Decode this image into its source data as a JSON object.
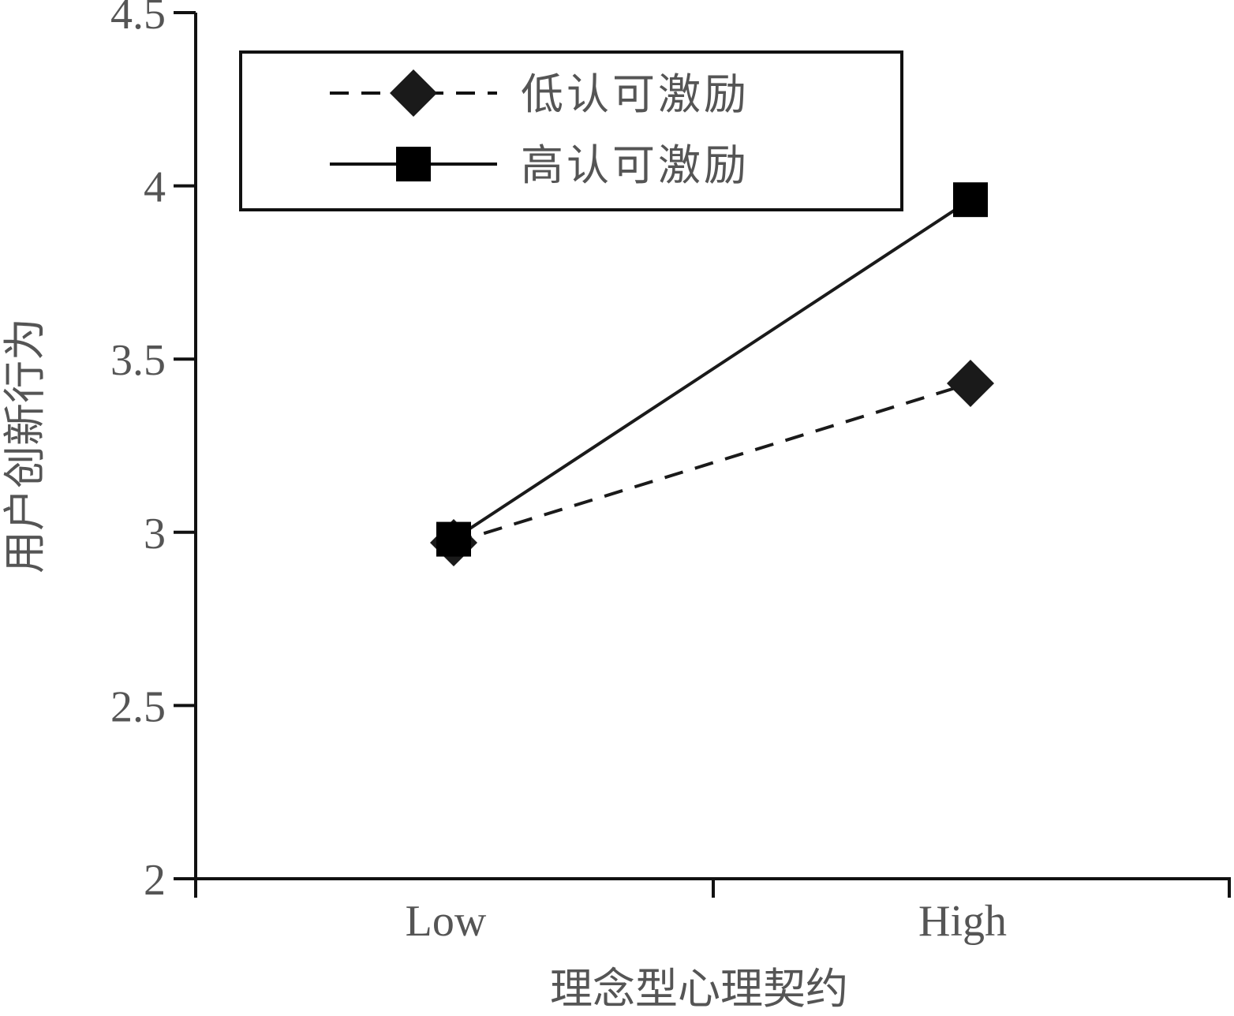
{
  "chart_data": {
    "type": "line",
    "title": "",
    "xlabel": "理念型心理契约",
    "ylabel": "用户创新行为",
    "categories": [
      "Low",
      "High"
    ],
    "ylim": [
      2,
      4.5
    ],
    "yticks": [
      "2",
      "2.5",
      "3",
      "3.5",
      "4",
      "4.5"
    ],
    "grid": false,
    "legend_position": "top-left",
    "series": [
      {
        "name": "低认可激励",
        "values": [
          2.97,
          3.43
        ],
        "line_style": "dashed",
        "marker": "diamond",
        "color": "#1a1a1a"
      },
      {
        "name": "高认可激励",
        "values": [
          2.98,
          3.96
        ],
        "line_style": "solid",
        "marker": "square",
        "color": "#1a1a1a"
      }
    ]
  }
}
